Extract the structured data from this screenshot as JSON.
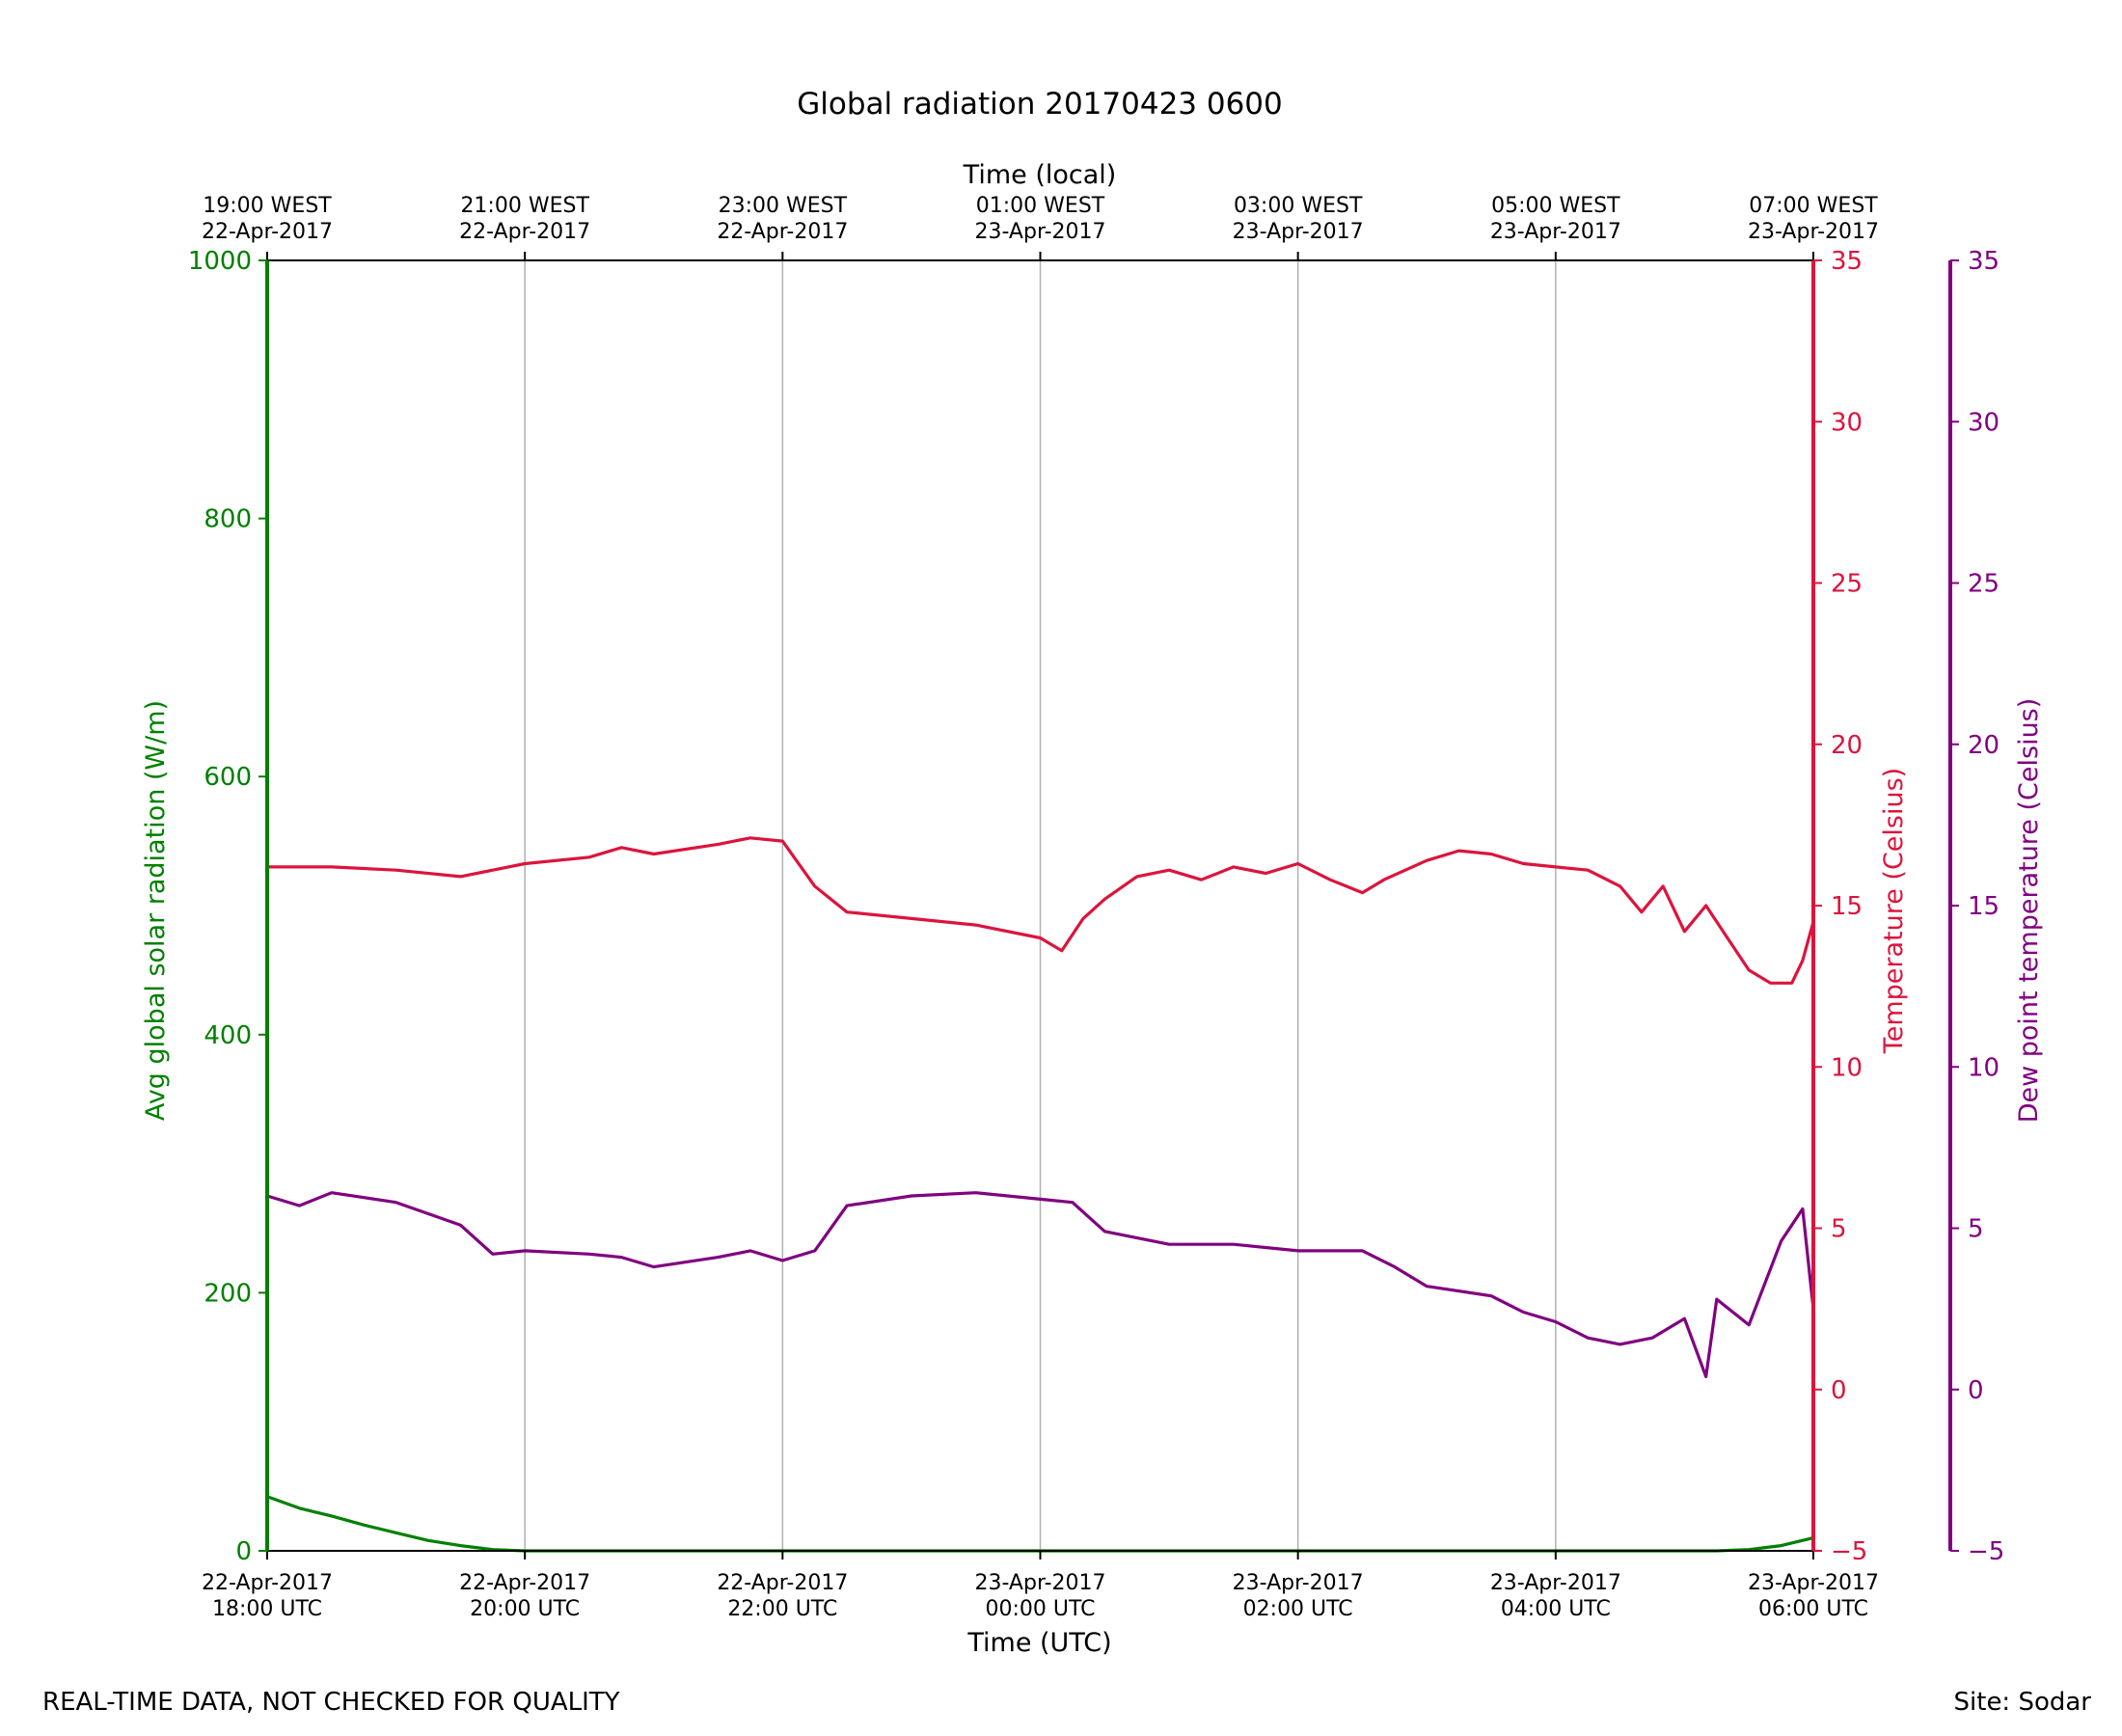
{
  "chart_data": {
    "type": "line",
    "title": "Global radiation 20170423 0600",
    "xlabel": "Time (UTC)",
    "xlabel_top": "Time (local)",
    "x_range": [
      "2017-04-22 18:00",
      "2017-04-23 06:00"
    ],
    "ticks_bottom": [
      {
        "date": "22-Apr-2017",
        "time": "18:00 UTC"
      },
      {
        "date": "22-Apr-2017",
        "time": "20:00 UTC"
      },
      {
        "date": "22-Apr-2017",
        "time": "22:00 UTC"
      },
      {
        "date": "23-Apr-2017",
        "time": "00:00 UTC"
      },
      {
        "date": "23-Apr-2017",
        "time": "02:00 UTC"
      },
      {
        "date": "23-Apr-2017",
        "time": "04:00 UTC"
      },
      {
        "date": "23-Apr-2017",
        "time": "06:00 UTC"
      }
    ],
    "ticks_top": [
      {
        "time": "19:00 WEST",
        "date": "22-Apr-2017"
      },
      {
        "time": "21:00 WEST",
        "date": "22-Apr-2017"
      },
      {
        "time": "23:00 WEST",
        "date": "22-Apr-2017"
      },
      {
        "time": "01:00 WEST",
        "date": "23-Apr-2017"
      },
      {
        "time": "03:00 WEST",
        "date": "23-Apr-2017"
      },
      {
        "time": "05:00 WEST",
        "date": "23-Apr-2017"
      },
      {
        "time": "07:00 WEST",
        "date": "23-Apr-2017"
      }
    ],
    "grid": "vertical",
    "axes": {
      "radiation": {
        "label": "Avg global solar radiation (W/m)",
        "range": [
          0,
          1000
        ],
        "ticks": [
          0,
          200,
          400,
          600,
          800,
          1000
        ],
        "color": "#008000",
        "side": "left"
      },
      "temperature": {
        "label": "Temperature (Celsius)",
        "range": [
          -5,
          35
        ],
        "ticks": [
          -5,
          0,
          5,
          10,
          15,
          20,
          25,
          30,
          35
        ],
        "color": "#dc143c",
        "side": "right"
      },
      "dewpoint": {
        "label": "Dew point temperature (Celsius)",
        "range": [
          -5,
          35
        ],
        "ticks": [
          -5,
          0,
          5,
          10,
          15,
          20,
          25,
          30,
          35
        ],
        "color": "#800080",
        "side": "far-right"
      }
    },
    "series": [
      {
        "name": "Avg global solar radiation (W/m)",
        "axis": "radiation",
        "color": "#008000",
        "x": [
          "2017-04-22 18:00",
          "2017-04-22 18:15",
          "2017-04-22 18:30",
          "2017-04-22 18:45",
          "2017-04-22 19:00",
          "2017-04-22 19:15",
          "2017-04-22 19:30",
          "2017-04-22 19:45",
          "2017-04-22 20:00",
          "2017-04-22 21:00",
          "2017-04-23 00:00",
          "2017-04-23 03:00",
          "2017-04-23 05:00",
          "2017-04-23 05:15",
          "2017-04-23 05:30",
          "2017-04-23 05:45",
          "2017-04-23 06:00"
        ],
        "y": [
          42,
          33,
          27,
          20,
          14,
          8,
          4,
          1,
          0,
          0,
          0,
          0,
          0,
          0,
          1,
          4,
          10
        ]
      },
      {
        "name": "Temperature (Celsius)",
        "axis": "temperature",
        "color": "#dc143c",
        "x": [
          "2017-04-22 18:00",
          "2017-04-22 18:30",
          "2017-04-22 19:00",
          "2017-04-22 19:30",
          "2017-04-22 20:00",
          "2017-04-22 20:30",
          "2017-04-22 20:45",
          "2017-04-22 21:00",
          "2017-04-22 21:30",
          "2017-04-22 21:45",
          "2017-04-22 22:00",
          "2017-04-22 22:15",
          "2017-04-22 22:30",
          "2017-04-22 23:00",
          "2017-04-22 23:30",
          "2017-04-23 00:00",
          "2017-04-23 00:10",
          "2017-04-23 00:20",
          "2017-04-23 00:30",
          "2017-04-23 00:45",
          "2017-04-23 01:00",
          "2017-04-23 01:15",
          "2017-04-23 01:30",
          "2017-04-23 01:45",
          "2017-04-23 02:00",
          "2017-04-23 02:15",
          "2017-04-23 02:30",
          "2017-04-23 02:40",
          "2017-04-23 03:00",
          "2017-04-23 03:15",
          "2017-04-23 03:30",
          "2017-04-23 03:45",
          "2017-04-23 04:00",
          "2017-04-23 04:15",
          "2017-04-23 04:30",
          "2017-04-23 04:40",
          "2017-04-23 04:50",
          "2017-04-23 05:00",
          "2017-04-23 05:10",
          "2017-04-23 05:20",
          "2017-04-23 05:30",
          "2017-04-23 05:40",
          "2017-04-23 05:50",
          "2017-04-23 05:55",
          "2017-04-23 06:00"
        ],
        "y": [
          16.2,
          16.2,
          16.1,
          15.9,
          16.3,
          16.5,
          16.8,
          16.6,
          16.9,
          17.1,
          17.0,
          15.6,
          14.8,
          14.6,
          14.4,
          14.0,
          13.6,
          14.6,
          15.2,
          15.9,
          16.1,
          15.8,
          16.2,
          16.0,
          16.3,
          15.8,
          15.4,
          15.8,
          16.4,
          16.7,
          16.6,
          16.3,
          16.2,
          16.1,
          15.6,
          14.8,
          15.6,
          14.2,
          15.0,
          14.0,
          13.0,
          12.6,
          12.6,
          13.3,
          14.5
        ]
      },
      {
        "name": "Dew point temperature (Celsius)",
        "axis": "dewpoint",
        "color": "#800080",
        "x": [
          "2017-04-22 18:00",
          "2017-04-22 18:15",
          "2017-04-22 18:30",
          "2017-04-22 19:00",
          "2017-04-22 19:30",
          "2017-04-22 19:45",
          "2017-04-22 20:00",
          "2017-04-22 20:30",
          "2017-04-22 20:45",
          "2017-04-22 21:00",
          "2017-04-22 21:30",
          "2017-04-22 21:45",
          "2017-04-22 22:00",
          "2017-04-22 22:15",
          "2017-04-22 22:30",
          "2017-04-22 23:00",
          "2017-04-22 23:30",
          "2017-04-23 00:00",
          "2017-04-23 00:15",
          "2017-04-23 00:30",
          "2017-04-23 01:00",
          "2017-04-23 01:30",
          "2017-04-23 02:00",
          "2017-04-23 02:30",
          "2017-04-23 02:45",
          "2017-04-23 03:00",
          "2017-04-23 03:30",
          "2017-04-23 03:45",
          "2017-04-23 04:00",
          "2017-04-23 04:15",
          "2017-04-23 04:30",
          "2017-04-23 04:45",
          "2017-04-23 05:00",
          "2017-04-23 05:10",
          "2017-04-23 05:15",
          "2017-04-23 05:30",
          "2017-04-23 05:45",
          "2017-04-23 05:55",
          "2017-04-23 06:00"
        ],
        "y": [
          6.0,
          5.7,
          6.1,
          5.8,
          5.1,
          4.2,
          4.3,
          4.2,
          4.1,
          3.8,
          4.1,
          4.3,
          4.0,
          4.3,
          5.7,
          6.0,
          6.1,
          5.9,
          5.8,
          4.9,
          4.5,
          4.5,
          4.3,
          4.3,
          3.8,
          3.2,
          2.9,
          2.4,
          2.1,
          1.6,
          1.4,
          1.6,
          2.2,
          0.4,
          2.8,
          2.0,
          4.6,
          5.6,
          2.5
        ]
      }
    ]
  },
  "footer": {
    "disclaimer": "REAL-TIME DATA, NOT CHECKED FOR QUALITY",
    "site": "Site: Sodar"
  }
}
